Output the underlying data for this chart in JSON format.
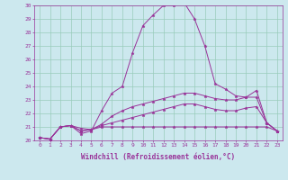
{
  "xlabel": "Windchill (Refroidissement éolien,°C)",
  "xlim": [
    -0.5,
    23.5
  ],
  "ylim": [
    20,
    30
  ],
  "yticks": [
    20,
    21,
    22,
    23,
    24,
    25,
    26,
    27,
    28,
    29,
    30
  ],
  "xticks": [
    0,
    1,
    2,
    3,
    4,
    5,
    6,
    7,
    8,
    9,
    10,
    11,
    12,
    13,
    14,
    15,
    16,
    17,
    18,
    19,
    20,
    21,
    22,
    23
  ],
  "bg_color": "#cce8ee",
  "line_color": "#993399",
  "grid_color": "#99ccbb",
  "lines": [
    {
      "x": [
        0,
        1,
        2,
        3,
        4,
        5,
        6,
        7,
        8,
        9,
        10,
        11,
        12,
        13,
        14,
        15,
        16,
        17,
        18,
        19,
        20,
        21,
        22,
        23
      ],
      "y": [
        20.2,
        20.1,
        21.0,
        21.1,
        20.5,
        20.7,
        22.2,
        23.5,
        24.0,
        26.5,
        28.5,
        29.3,
        30.0,
        30.0,
        30.2,
        29.0,
        27.0,
        24.2,
        23.8,
        23.3,
        23.2,
        23.7,
        21.3,
        20.7
      ]
    },
    {
      "x": [
        0,
        1,
        2,
        3,
        4,
        5,
        6,
        7,
        8,
        9,
        10,
        11,
        12,
        13,
        14,
        15,
        16,
        17,
        18,
        19,
        20,
        21,
        22,
        23
      ],
      "y": [
        20.2,
        20.1,
        21.0,
        21.1,
        20.9,
        20.8,
        21.0,
        21.0,
        21.0,
        21.0,
        21.0,
        21.0,
        21.0,
        21.0,
        21.0,
        21.0,
        21.0,
        21.0,
        21.0,
        21.0,
        21.0,
        21.0,
        21.0,
        20.7
      ]
    },
    {
      "x": [
        0,
        1,
        2,
        3,
        4,
        5,
        6,
        7,
        8,
        9,
        10,
        11,
        12,
        13,
        14,
        15,
        16,
        17,
        18,
        19,
        20,
        21,
        22,
        23
      ],
      "y": [
        20.2,
        20.1,
        21.0,
        21.1,
        20.7,
        20.8,
        21.2,
        21.8,
        22.2,
        22.5,
        22.7,
        22.9,
        23.1,
        23.3,
        23.5,
        23.5,
        23.3,
        23.1,
        23.0,
        23.0,
        23.2,
        23.2,
        21.3,
        20.7
      ]
    },
    {
      "x": [
        0,
        1,
        2,
        3,
        4,
        5,
        6,
        7,
        8,
        9,
        10,
        11,
        12,
        13,
        14,
        15,
        16,
        17,
        18,
        19,
        20,
        21,
        22,
        23
      ],
      "y": [
        20.2,
        20.1,
        21.0,
        21.1,
        20.7,
        20.8,
        21.1,
        21.3,
        21.5,
        21.7,
        21.9,
        22.1,
        22.3,
        22.5,
        22.7,
        22.7,
        22.5,
        22.3,
        22.2,
        22.2,
        22.4,
        22.5,
        21.3,
        20.7
      ]
    }
  ]
}
